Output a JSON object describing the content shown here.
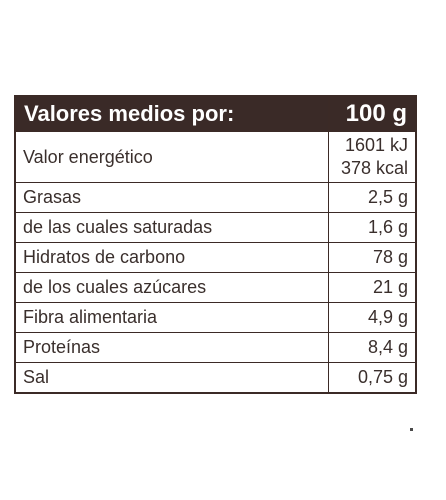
{
  "table": {
    "header": {
      "label": "Valores medios por:",
      "amount": "100 g"
    },
    "energy": {
      "label": "Valor energético",
      "kj": "1601 kJ",
      "kcal": "378 kcal"
    },
    "rows": [
      {
        "label": "Grasas",
        "value": "2,5 g"
      },
      {
        "label": "de las cuales saturadas",
        "value": "1,6 g"
      },
      {
        "label": "Hidratos de carbono",
        "value": "78 g"
      },
      {
        "label": "de los cuales azúcares",
        "value": "21 g"
      },
      {
        "label": "Fibra alimentaria",
        "value": "4,9 g"
      },
      {
        "label": "Proteínas",
        "value": "8,4 g"
      },
      {
        "label": "Sal",
        "value": "0,75 g"
      }
    ]
  },
  "colors": {
    "header_background": "#3a2a27",
    "border": "#3b2a26",
    "text": "#3a2f2c"
  }
}
